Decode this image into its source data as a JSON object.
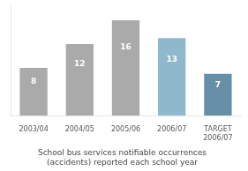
{
  "chart_data": {
    "type": "bar",
    "title": "School bus services notifiable occurrences\n(accidents) reported each school year",
    "categories": [
      "2003/04",
      "2004/05",
      "2005/06",
      "2006/07",
      "TARGET\n2006/07"
    ],
    "values": [
      8,
      12,
      16,
      13,
      7
    ],
    "colors": [
      "#aaaaaa",
      "#aaaaaa",
      "#aaaaaa",
      "#90b8cc",
      "#6690a8"
    ],
    "ylim": [
      0,
      18.5
    ],
    "grid": false,
    "data_labels": true,
    "tick_labels": "x"
  }
}
